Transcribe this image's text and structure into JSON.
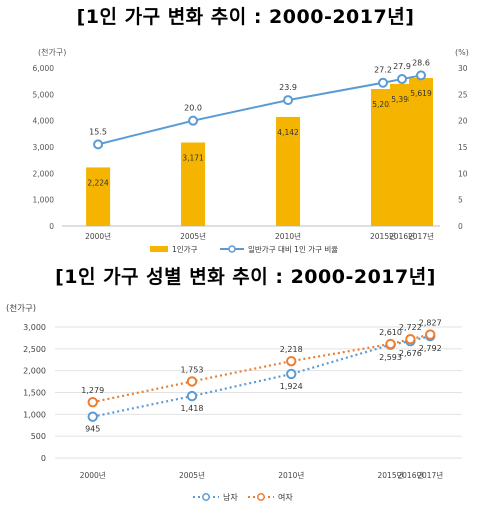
{
  "chart_data": [
    {
      "type": "bar",
      "title": "[1인 가구 변화 추이 : 2000-2017년]",
      "y_unit_left": "(천가구)",
      "y_unit_right": "(%)",
      "categories": [
        "2000년",
        "2005년",
        "2010년",
        "2015년",
        "2016년",
        "2017년"
      ],
      "x_numeric": [
        2000,
        2005,
        2010,
        2015,
        2016,
        2017
      ],
      "ylim": [
        0,
        6000
      ],
      "yticks": [
        "0",
        "1,000",
        "2,000",
        "3,000",
        "4,000",
        "5,000",
        "6,000"
      ],
      "y2lim": [
        0,
        30
      ],
      "y2ticks": [
        "0",
        "5",
        "10",
        "15",
        "20",
        "25",
        "30"
      ],
      "series": [
        {
          "name": "1인가구",
          "kind": "bar",
          "axis": "left",
          "color": "#f5b400",
          "values": [
            2224,
            3171,
            4142,
            5203,
            5398,
            5619
          ],
          "labels": [
            "2,224",
            "3,171",
            "4,142",
            "5,203",
            "5,398",
            "5,619"
          ]
        },
        {
          "name": "일반가구 대비 1인 가구 비율",
          "kind": "line",
          "axis": "right",
          "color": "#5b9bd5",
          "values": [
            15.5,
            20.0,
            23.9,
            27.2,
            27.9,
            28.6
          ],
          "labels": [
            "15.5",
            "20.0",
            "23.9",
            "27.2",
            "27.9",
            "28.6"
          ]
        }
      ]
    },
    {
      "type": "line",
      "title": "[1인 가구 성별 변화 추이 : 2000-2017년]",
      "y_unit": "(천가구)",
      "categories": [
        "2000년",
        "2005년",
        "2010년",
        "2015년",
        "2016년",
        "2017년"
      ],
      "x_numeric": [
        2000,
        2005,
        2010,
        2015,
        2016,
        2017
      ],
      "ylim": [
        0,
        3000
      ],
      "yticks": [
        "0",
        "500",
        "1,000",
        "1,500",
        "2,000",
        "2,500",
        "3,000"
      ],
      "series": [
        {
          "name": "남자",
          "color": "#5b9bd5",
          "style": "dotted",
          "values": [
            945,
            1418,
            1924,
            2593,
            2676,
            2792
          ],
          "labels": [
            "945",
            "1,418",
            "1,924",
            "2,593",
            "2,676",
            "2,792"
          ]
        },
        {
          "name": "여자",
          "color": "#ed7d31",
          "style": "dotted",
          "values": [
            1279,
            1753,
            2218,
            2610,
            2722,
            2827
          ],
          "labels": [
            "1,279",
            "1,753",
            "2,218",
            "2,610",
            "2,722",
            "2,827"
          ]
        }
      ]
    }
  ]
}
